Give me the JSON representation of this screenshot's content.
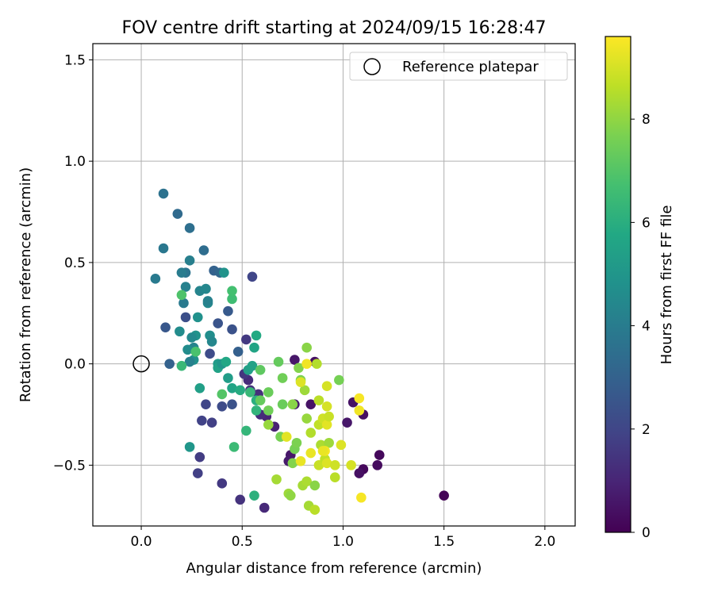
{
  "chart_data": {
    "type": "scatter",
    "title": "FOV centre drift starting at 2024/09/15 16:28:47",
    "xlabel": "Angular distance from reference (arcmin)",
    "ylabel": "Rotation from reference (arcmin)",
    "xlim": [
      -0.24,
      2.15
    ],
    "ylim": [
      -0.8,
      1.58
    ],
    "xticks": [
      0.0,
      0.5,
      1.0,
      1.5,
      2.0
    ],
    "xtick_labels": [
      "0.0",
      "0.5",
      "1.0",
      "1.5",
      "2.0"
    ],
    "yticks": [
      -0.5,
      0.0,
      0.5,
      1.0,
      1.5
    ],
    "ytick_labels": [
      "−0.5",
      "0.0",
      "0.5",
      "1.0",
      "1.5"
    ],
    "grid": true,
    "legend": {
      "position": "top-right",
      "label": "Reference platepar"
    },
    "reference_point": {
      "x": 0.0,
      "y": 0.0,
      "label": "Reference platepar"
    },
    "colorbar": {
      "label": "Hours from first FF file",
      "colormap": "viridis",
      "min": 0.0,
      "max": 9.6,
      "ticks": [
        0,
        2,
        4,
        6,
        8
      ],
      "tick_labels": [
        "0",
        "2",
        "4",
        "6",
        "8"
      ]
    },
    "points": [
      {
        "x": 1.5,
        "y": -0.65,
        "c": 0.1
      },
      {
        "x": 1.18,
        "y": -0.45,
        "c": 0.2
      },
      {
        "x": 1.17,
        "y": -0.5,
        "c": 0.3
      },
      {
        "x": 1.1,
        "y": -0.52,
        "c": 0.2
      },
      {
        "x": 1.08,
        "y": -0.54,
        "c": 0.4
      },
      {
        "x": 1.1,
        "y": -0.25,
        "c": 0.4
      },
      {
        "x": 1.05,
        "y": -0.19,
        "c": 0.5
      },
      {
        "x": 1.02,
        "y": -0.29,
        "c": 0.6
      },
      {
        "x": 0.86,
        "y": 0.01,
        "c": 0.4
      },
      {
        "x": 0.76,
        "y": 0.02,
        "c": 0.6
      },
      {
        "x": 0.84,
        "y": -0.2,
        "c": 0.5
      },
      {
        "x": 0.76,
        "y": -0.2,
        "c": 0.7
      },
      {
        "x": 0.74,
        "y": -0.45,
        "c": 0.6
      },
      {
        "x": 0.73,
        "y": -0.48,
        "c": 0.7
      },
      {
        "x": 0.66,
        "y": -0.31,
        "c": 0.9
      },
      {
        "x": 0.62,
        "y": -0.26,
        "c": 1.0
      },
      {
        "x": 0.61,
        "y": -0.71,
        "c": 1.1
      },
      {
        "x": 0.59,
        "y": -0.25,
        "c": 1.2
      },
      {
        "x": 0.58,
        "y": -0.15,
        "c": 1.3
      },
      {
        "x": 0.54,
        "y": -0.13,
        "c": 1.4
      },
      {
        "x": 0.53,
        "y": -0.08,
        "c": 1.2
      },
      {
        "x": 0.49,
        "y": -0.67,
        "c": 1.4
      },
      {
        "x": 0.51,
        "y": -0.05,
        "c": 1.5
      },
      {
        "x": 0.52,
        "y": 0.12,
        "c": 1.6
      },
      {
        "x": 0.55,
        "y": 0.43,
        "c": 2.0
      },
      {
        "x": 0.4,
        "y": -0.59,
        "c": 1.6
      },
      {
        "x": 0.28,
        "y": -0.54,
        "c": 1.8
      },
      {
        "x": 0.29,
        "y": -0.46,
        "c": 1.7
      },
      {
        "x": 0.3,
        "y": -0.28,
        "c": 1.9
      },
      {
        "x": 0.35,
        "y": -0.29,
        "c": 1.8
      },
      {
        "x": 0.32,
        "y": -0.2,
        "c": 2.0
      },
      {
        "x": 0.4,
        "y": -0.21,
        "c": 2.2
      },
      {
        "x": 0.45,
        "y": -0.2,
        "c": 2.4
      },
      {
        "x": 0.34,
        "y": 0.05,
        "c": 2.2
      },
      {
        "x": 0.22,
        "y": 0.23,
        "c": 2.3
      },
      {
        "x": 0.12,
        "y": 0.18,
        "c": 2.6
      },
      {
        "x": 0.14,
        "y": 0.0,
        "c": 3.0
      },
      {
        "x": 0.45,
        "y": 0.17,
        "c": 2.4
      },
      {
        "x": 0.38,
        "y": 0.2,
        "c": 2.5
      },
      {
        "x": 0.43,
        "y": 0.26,
        "c": 2.7
      },
      {
        "x": 0.48,
        "y": 0.06,
        "c": 2.9
      },
      {
        "x": 0.36,
        "y": 0.46,
        "c": 3.0
      },
      {
        "x": 0.39,
        "y": 0.45,
        "c": 3.2
      },
      {
        "x": 0.31,
        "y": 0.56,
        "c": 3.4
      },
      {
        "x": 0.24,
        "y": 0.67,
        "c": 3.5
      },
      {
        "x": 0.18,
        "y": 0.74,
        "c": 3.3
      },
      {
        "x": 0.11,
        "y": 0.84,
        "c": 3.6
      },
      {
        "x": 0.11,
        "y": 0.57,
        "c": 3.8
      },
      {
        "x": 0.07,
        "y": 0.42,
        "c": 3.9
      },
      {
        "x": 0.22,
        "y": 0.45,
        "c": 3.7
      },
      {
        "x": 0.2,
        "y": 0.45,
        "c": 4.0
      },
      {
        "x": 0.24,
        "y": 0.51,
        "c": 4.1
      },
      {
        "x": 0.22,
        "y": 0.38,
        "c": 4.2
      },
      {
        "x": 0.21,
        "y": 0.3,
        "c": 3.9
      },
      {
        "x": 0.29,
        "y": 0.36,
        "c": 4.3
      },
      {
        "x": 0.32,
        "y": 0.37,
        "c": 4.4
      },
      {
        "x": 0.33,
        "y": 0.3,
        "c": 4.5
      },
      {
        "x": 0.33,
        "y": 0.31,
        "c": 4.2
      },
      {
        "x": 0.28,
        "y": 0.23,
        "c": 4.8
      },
      {
        "x": 0.19,
        "y": 0.16,
        "c": 4.6
      },
      {
        "x": 0.34,
        "y": 0.14,
        "c": 4.7
      },
      {
        "x": 0.35,
        "y": 0.11,
        "c": 4.4
      },
      {
        "x": 0.27,
        "y": 0.14,
        "c": 4.9
      },
      {
        "x": 0.25,
        "y": 0.13,
        "c": 4.5
      },
      {
        "x": 0.26,
        "y": 0.08,
        "c": 4.3
      },
      {
        "x": 0.23,
        "y": 0.07,
        "c": 4.6
      },
      {
        "x": 0.26,
        "y": 0.02,
        "c": 4.8
      },
      {
        "x": 0.24,
        "y": 0.01,
        "c": 4.2
      },
      {
        "x": 0.41,
        "y": 0.45,
        "c": 4.9
      },
      {
        "x": 0.24,
        "y": -0.41,
        "c": 5.0
      },
      {
        "x": 0.29,
        "y": -0.12,
        "c": 5.4
      },
      {
        "x": 0.38,
        "y": 0.0,
        "c": 5.2
      },
      {
        "x": 0.38,
        "y": -0.02,
        "c": 5.5
      },
      {
        "x": 0.4,
        "y": 0.0,
        "c": 5.0
      },
      {
        "x": 0.43,
        "y": -0.07,
        "c": 5.3
      },
      {
        "x": 0.45,
        "y": -0.12,
        "c": 5.6
      },
      {
        "x": 0.42,
        "y": 0.01,
        "c": 5.7
      },
      {
        "x": 0.49,
        "y": -0.13,
        "c": 5.9
      },
      {
        "x": 0.53,
        "y": -0.03,
        "c": 5.4
      },
      {
        "x": 0.55,
        "y": -0.01,
        "c": 5.5
      },
      {
        "x": 0.54,
        "y": -0.14,
        "c": 6.4
      },
      {
        "x": 0.56,
        "y": 0.08,
        "c": 5.6
      },
      {
        "x": 0.57,
        "y": 0.14,
        "c": 5.8
      },
      {
        "x": 0.57,
        "y": -0.18,
        "c": 6.0
      },
      {
        "x": 0.57,
        "y": -0.23,
        "c": 6.2
      },
      {
        "x": 0.56,
        "y": -0.65,
        "c": 6.1
      },
      {
        "x": 0.52,
        "y": -0.33,
        "c": 6.3
      },
      {
        "x": 0.46,
        "y": -0.41,
        "c": 6.5
      },
      {
        "x": 0.45,
        "y": 0.32,
        "c": 6.6
      },
      {
        "x": 0.45,
        "y": 0.36,
        "c": 6.7
      },
      {
        "x": 0.4,
        "y": -0.15,
        "c": 7.0
      },
      {
        "x": 0.27,
        "y": 0.06,
        "c": 6.8
      },
      {
        "x": 0.2,
        "y": 0.34,
        "c": 6.9
      },
      {
        "x": 0.2,
        "y": -0.01,
        "c": 6.4
      },
      {
        "x": 0.59,
        "y": -0.03,
        "c": 7.2
      },
      {
        "x": 0.59,
        "y": -0.18,
        "c": 7.3
      },
      {
        "x": 0.63,
        "y": -0.14,
        "c": 7.4
      },
      {
        "x": 0.63,
        "y": -0.23,
        "c": 7.5
      },
      {
        "x": 0.68,
        "y": 0.01,
        "c": 7.3
      },
      {
        "x": 0.69,
        "y": -0.36,
        "c": 7.6
      },
      {
        "x": 0.7,
        "y": -0.07,
        "c": 7.5
      },
      {
        "x": 0.7,
        "y": -0.2,
        "c": 7.4
      },
      {
        "x": 0.63,
        "y": -0.3,
        "c": 8.1
      },
      {
        "x": 0.67,
        "y": -0.57,
        "c": 8.3
      },
      {
        "x": 0.73,
        "y": -0.64,
        "c": 8.2
      },
      {
        "x": 0.74,
        "y": -0.65,
        "c": 8.0
      },
      {
        "x": 0.75,
        "y": -0.2,
        "c": 7.9
      },
      {
        "x": 0.76,
        "y": -0.42,
        "c": 7.6
      },
      {
        "x": 0.77,
        "y": -0.39,
        "c": 7.7
      },
      {
        "x": 0.78,
        "y": -0.02,
        "c": 7.8
      },
      {
        "x": 0.79,
        "y": -0.08,
        "c": 7.7
      },
      {
        "x": 0.75,
        "y": -0.49,
        "c": 7.8
      },
      {
        "x": 0.8,
        "y": -0.6,
        "c": 8.3
      },
      {
        "x": 0.82,
        "y": 0.08,
        "c": 7.9
      },
      {
        "x": 0.81,
        "y": -0.13,
        "c": 8.2
      },
      {
        "x": 0.82,
        "y": -0.27,
        "c": 8.1
      },
      {
        "x": 0.82,
        "y": -0.58,
        "c": 8.4
      },
      {
        "x": 0.83,
        "y": -0.7,
        "c": 8.3
      },
      {
        "x": 0.84,
        "y": -0.34,
        "c": 8.5
      },
      {
        "x": 0.86,
        "y": -0.6,
        "c": 7.9
      },
      {
        "x": 0.86,
        "y": -0.72,
        "c": 8.6
      },
      {
        "x": 0.87,
        "y": 0.0,
        "c": 8.5
      },
      {
        "x": 0.88,
        "y": -0.18,
        "c": 8.6
      },
      {
        "x": 0.88,
        "y": -0.3,
        "c": 8.7
      },
      {
        "x": 0.88,
        "y": -0.5,
        "c": 8.8
      },
      {
        "x": 0.89,
        "y": -0.4,
        "c": 8.4
      },
      {
        "x": 0.9,
        "y": -0.27,
        "c": 8.9
      },
      {
        "x": 0.91,
        "y": -0.47,
        "c": 8.7
      },
      {
        "x": 0.92,
        "y": -0.21,
        "c": 9.0
      },
      {
        "x": 0.92,
        "y": -0.11,
        "c": 9.0
      },
      {
        "x": 0.92,
        "y": -0.49,
        "c": 9.1
      },
      {
        "x": 0.92,
        "y": -0.3,
        "c": 9.2
      },
      {
        "x": 0.93,
        "y": -0.26,
        "c": 8.8
      },
      {
        "x": 0.93,
        "y": -0.39,
        "c": 8.2
      },
      {
        "x": 0.96,
        "y": -0.56,
        "c": 8.6
      },
      {
        "x": 0.96,
        "y": -0.5,
        "c": 8.9
      },
      {
        "x": 0.98,
        "y": -0.08,
        "c": 7.6
      },
      {
        "x": 0.99,
        "y": -0.4,
        "c": 9.1
      },
      {
        "x": 1.04,
        "y": -0.5,
        "c": 9.0
      },
      {
        "x": 1.09,
        "y": -0.66,
        "c": 9.5
      },
      {
        "x": 1.08,
        "y": -0.17,
        "c": 9.5
      },
      {
        "x": 1.08,
        "y": -0.23,
        "c": 9.4
      },
      {
        "x": 0.82,
        "y": 0.0,
        "c": 9.4
      },
      {
        "x": 0.84,
        "y": -0.44,
        "c": 9.3
      },
      {
        "x": 0.79,
        "y": -0.48,
        "c": 9.3
      },
      {
        "x": 0.91,
        "y": -0.43,
        "c": 9.5
      },
      {
        "x": 0.72,
        "y": -0.36,
        "c": 9.2
      },
      {
        "x": 0.79,
        "y": -0.09,
        "c": 9.1
      },
      {
        "x": 0.9,
        "y": -0.43,
        "c": 9.3
      }
    ]
  }
}
